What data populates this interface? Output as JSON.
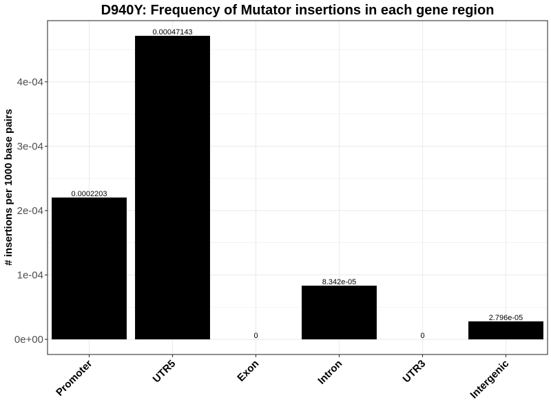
{
  "chart_data": {
    "type": "bar",
    "title": "D940Y: Frequency of Mutator insertions in each gene region",
    "xlabel": "",
    "ylabel": "# insertions per 1000 base pairs",
    "categories": [
      "Promoter",
      "UTR5",
      "Exon",
      "Intron",
      "UTR3",
      "Intergenic"
    ],
    "values": [
      0.0002203,
      0.00047143,
      0,
      8.342e-05,
      0,
      2.796e-05
    ],
    "data_labels": [
      "0.0002203",
      "0.00047143",
      "0",
      "8.342e-05",
      "0",
      "2.796e-05"
    ],
    "ylim": [
      -2.35e-05,
      0.000495
    ],
    "yticks": [
      0,
      0.0001,
      0.0002,
      0.0003,
      0.0004
    ],
    "ytick_labels": [
      "0e+00",
      "1e-04",
      "2e-04",
      "3e-04",
      "4e-04"
    ],
    "grid": true,
    "legend": "none",
    "bar_color": "#000000",
    "grid_color": "#ebebeb",
    "panel_border_color": "#333333"
  }
}
